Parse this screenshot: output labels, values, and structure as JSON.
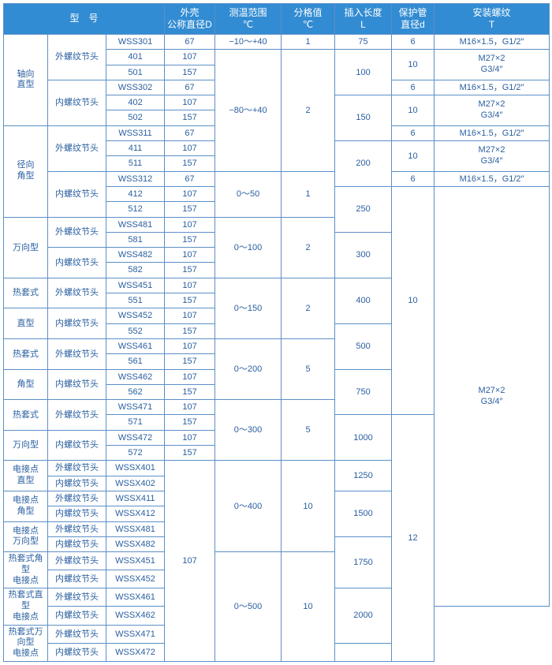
{
  "h": {
    "model": "型　号",
    "diam": "外壳\n公称直径D",
    "range": "测温范围\n℃",
    "div": "分格值\n℃",
    "ins": "插入长度\nL",
    "pipe": "保护管\n直径d",
    "thread": "安装螺纹\nT"
  },
  "txt": {
    "outer": "外螺纹节头",
    "inner": "内螺纹节头",
    "cat1": "轴向\n直型",
    "cat2": "径向\n角型",
    "cat3": "万向型",
    "cat4a": "热套式",
    "cat4b": "直型",
    "cat5a": "热套式",
    "cat5b": "角型",
    "cat6a": "热套式",
    "cat6b": "万向型",
    "cat7": "电接点\n直型",
    "cat8": "电接点\n角型",
    "cat9": "电接点\n万向型",
    "cat10": "热套式角型\n电接点",
    "cat11": "热套式直型\n电接点",
    "cat12": "热套式万向型\n电接点"
  },
  "mdl": {
    "m301": "WSS301",
    "m401": "401",
    "m501": "501",
    "m302": "WSS302",
    "m402": "402",
    "m502": "502",
    "m311": "WSS311",
    "m411": "411",
    "m511": "511",
    "m312": "WSS312",
    "m412": "412",
    "m512": "512",
    "m481": "WSS481",
    "m581": "581",
    "m482": "WSS482",
    "m582": "582",
    "m451": "WSS451",
    "m551": "551",
    "m452": "WSS452",
    "m552": "552",
    "m461": "WSS461",
    "m561": "561",
    "m462": "WSS462",
    "m562": "562",
    "m471": "WSS471",
    "m571": "571",
    "m472": "WSS472",
    "m572": "572",
    "x401": "WSSX401",
    "x402": "WSSX402",
    "x411": "WSSX411",
    "x412": "WSSX412",
    "x481": "WSSX481",
    "x482": "WSSX482",
    "x451": "WSSX451",
    "x452": "WSSX452",
    "x461": "WSSX461",
    "x462": "WSSX462",
    "x471": "WSSX471",
    "x472": "WSSX472"
  },
  "d": {
    "d67": "67",
    "d107": "107",
    "d157": "157"
  },
  "rng": {
    "r1": "−10～+40",
    "r2": "−80～+40",
    "r3": "0～50",
    "r4": "0～100",
    "r5": "0～150",
    "r6": "0～200",
    "r7": "0～300",
    "r8": "0～400",
    "r9": "0～500"
  },
  "div": {
    "v1": "1",
    "v2": "2",
    "v5": "5",
    "v10": "10"
  },
  "len": {
    "l75": "75",
    "l100": "100",
    "l150": "150",
    "l200": "200",
    "l250": "250",
    "l300": "300",
    "l400": "400",
    "l500": "500",
    "l750": "750",
    "l1000": "1000",
    "l1250": "1250",
    "l1500": "1500",
    "l1750": "1750",
    "l2000": "2000",
    "blank": ""
  },
  "pipe": {
    "p6": "6",
    "p10": "10",
    "p12": "12"
  },
  "th": {
    "t1": "M16×1.5，G1/2″",
    "t2": "M27×2\nG3/4″"
  }
}
